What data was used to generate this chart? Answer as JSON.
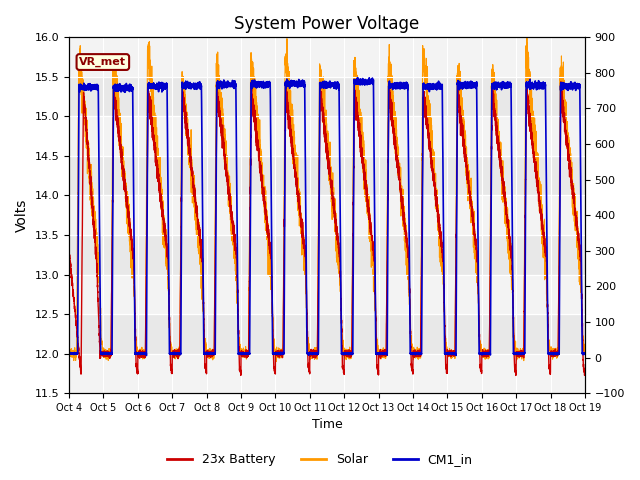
{
  "title": "System Power Voltage",
  "xlabel": "Time",
  "ylabel": "Volts",
  "ylim_left": [
    11.5,
    16.0
  ],
  "ylim_right": [
    -100,
    900
  ],
  "yticks_left": [
    11.5,
    12.0,
    12.5,
    13.0,
    13.5,
    14.0,
    14.5,
    15.0,
    15.5,
    16.0
  ],
  "yticks_right": [
    -100,
    0,
    100,
    200,
    300,
    400,
    500,
    600,
    700,
    800,
    900
  ],
  "xtick_labels": [
    "Oct 4",
    "Oct 5",
    "Oct 6",
    "Oct 7",
    "Oct 8",
    "Oct 9",
    "Oct 10",
    "Oct 11",
    "Oct 12",
    "Oct 13",
    "Oct 14",
    "Oct 15",
    "Oct 16",
    "Oct 17",
    "Oct 18",
    "Oct 19"
  ],
  "legend_labels": [
    "23x Battery",
    "Solar",
    "CM1_in"
  ],
  "legend_colors": [
    "#cc0000",
    "#ff9900",
    "#0000cc"
  ],
  "vr_met_label": "VR_met",
  "n_days": 15
}
